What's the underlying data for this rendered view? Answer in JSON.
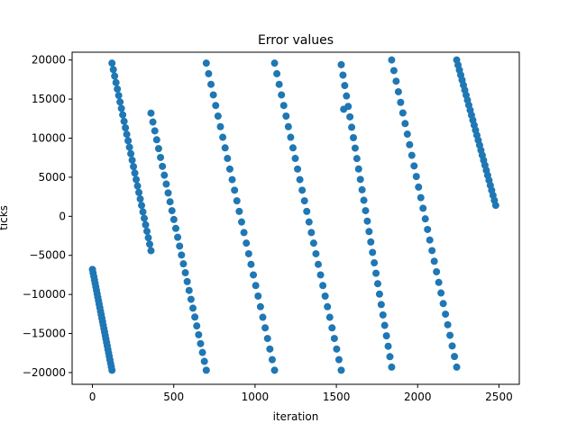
{
  "chart_data": {
    "type": "scatter",
    "title": "Error values",
    "xlabel": "iteration",
    "ylabel": "ticks",
    "xlim": [
      -125,
      2625
    ],
    "ylim": [
      -21500,
      21000
    ],
    "xticks": [
      0,
      500,
      1000,
      1500,
      2000,
      2500
    ],
    "yticks": [
      -20000,
      -15000,
      -10000,
      -5000,
      0,
      5000,
      10000,
      15000,
      20000
    ],
    "xtick_labels": [
      "0",
      "500",
      "1000",
      "1500",
      "2000",
      "2500"
    ],
    "ytick_labels": [
      "−20000",
      "−15000",
      "−10000",
      "−5000",
      "0",
      "5000",
      "10000",
      "15000",
      "20000"
    ],
    "grid": false,
    "legend": "none",
    "marker_color": "#1f77b4",
    "segments": [
      {
        "x": [
          0,
          120
        ],
        "y": [
          -6800,
          -19700
        ]
      },
      {
        "x": [
          120,
          360
        ],
        "y": [
          19600,
          -4400
        ]
      },
      {
        "x": [
          360,
          700
        ],
        "y": [
          13200,
          -19700
        ]
      },
      {
        "x": [
          700,
          1120
        ],
        "y": [
          19600,
          -19700
        ]
      },
      {
        "x": [
          1120,
          1530
        ],
        "y": [
          19600,
          -19700
        ]
      },
      {
        "x": [
          1530,
          1840
        ],
        "y": [
          19400,
          -19300
        ]
      },
      {
        "x": [
          1840,
          2240
        ],
        "y": [
          20000,
          -19300
        ]
      },
      {
        "x": [
          2240,
          2480
        ],
        "y": [
          20000,
          1400
        ]
      }
    ],
    "outliers": [
      {
        "x": 1545,
        "y": 13700
      }
    ],
    "points_per_segment": 30
  }
}
